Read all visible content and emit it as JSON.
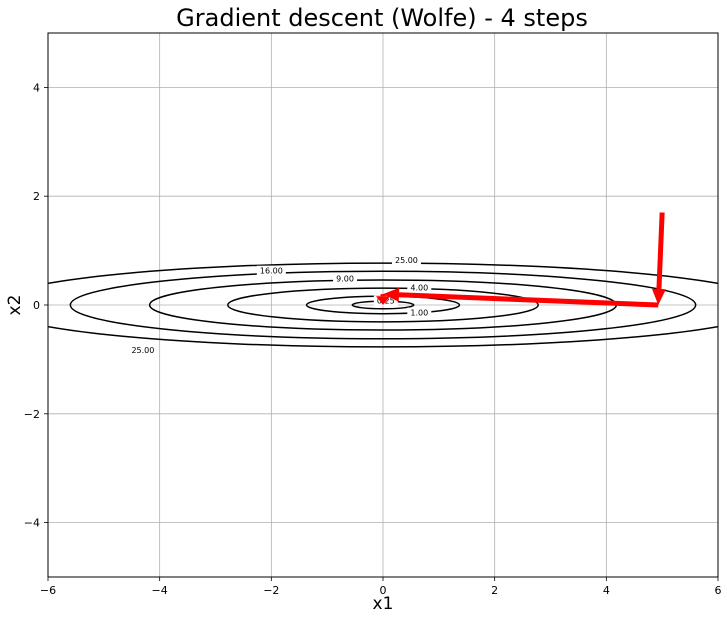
{
  "chart_data": {
    "type": "line",
    "title": "Gradient descent (Wolfe) - 4 steps",
    "xlabel": "x1",
    "ylabel": "x2",
    "xlim": [
      -6,
      6
    ],
    "ylim": [
      -5,
      5
    ],
    "xticks": [
      "−6",
      "−4",
      "−2",
      "0",
      "2",
      "4",
      "6"
    ],
    "yticks": [
      "−4",
      "−2",
      "0",
      "2",
      "4"
    ],
    "xtick_values": [
      -6,
      -4,
      -2,
      0,
      2,
      4,
      6
    ],
    "ytick_values": [
      -4,
      -2,
      0,
      2,
      4
    ],
    "grid": true,
    "contours": {
      "function": "x1^2/25 + 9*x2^2 scaled ellipses",
      "levels": [
        0.25,
        1.0,
        4.0,
        9.0,
        16.0,
        25.0
      ],
      "labels": [
        "0.25",
        "1.00",
        "4.00",
        "9.00",
        "16.00",
        "25.00"
      ],
      "semi_axes_x1": [
        0.55,
        1.37,
        2.78,
        4.18,
        5.6,
        7.0
      ],
      "semi_axes_x2": [
        0.07,
        0.16,
        0.31,
        0.46,
        0.62,
        0.77
      ],
      "color": "#000000"
    },
    "series": [
      {
        "color": "#ff0000",
        "points": [
          [
            5.0,
            1.7
          ],
          [
            4.93,
            0.0
          ],
          [
            0.0,
            0.2
          ],
          [
            0.0,
            0.0
          ]
        ]
      }
    ]
  }
}
